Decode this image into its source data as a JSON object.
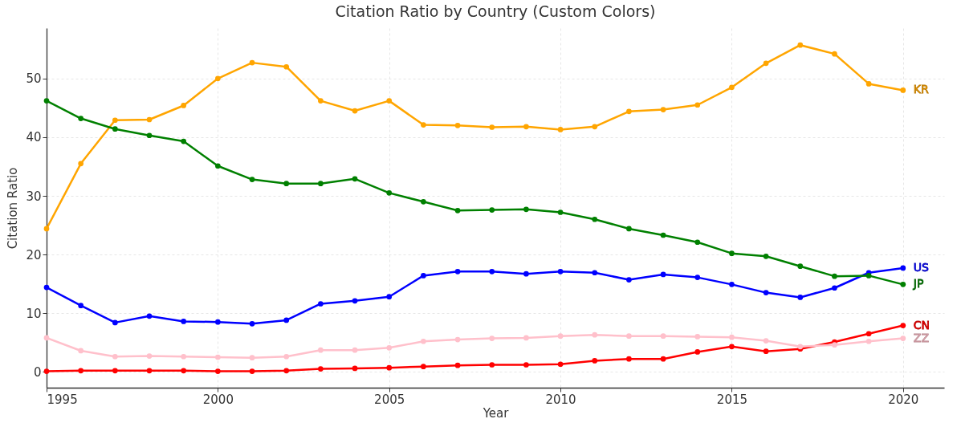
{
  "chart_data": {
    "type": "line",
    "title": "Citation Ratio by Country (Custom Colors)",
    "xlabel": "Year",
    "ylabel": "Citation Ratio",
    "x": [
      1995,
      1996,
      1997,
      1998,
      1999,
      2000,
      2001,
      2002,
      2003,
      2004,
      2005,
      2006,
      2007,
      2008,
      2009,
      2010,
      2011,
      2012,
      2013,
      2014,
      2015,
      2016,
      2017,
      2018,
      2019,
      2020
    ],
    "series": [
      {
        "name": "KR",
        "color": "#ffa500",
        "values": [
          24.4,
          35.5,
          42.9,
          43.0,
          45.4,
          50.0,
          52.7,
          52.0,
          46.2,
          44.5,
          46.2,
          42.1,
          42.0,
          41.7,
          41.8,
          41.3,
          41.8,
          44.4,
          44.7,
          45.5,
          48.5,
          52.6,
          55.7,
          54.2,
          49.1,
          48.0
        ]
      },
      {
        "name": "US",
        "color": "#0000ff",
        "values": [
          14.4,
          11.3,
          8.4,
          9.5,
          8.6,
          8.5,
          8.2,
          8.8,
          11.6,
          12.1,
          12.8,
          16.4,
          17.1,
          17.1,
          16.7,
          17.1,
          16.9,
          15.7,
          16.6,
          16.1,
          14.9,
          13.5,
          12.7,
          14.3,
          16.9,
          17.7
        ]
      },
      {
        "name": "JP",
        "color": "#008000",
        "values": [
          46.2,
          43.2,
          41.4,
          40.3,
          39.3,
          35.1,
          32.8,
          32.1,
          32.1,
          32.9,
          30.5,
          29.0,
          27.5,
          27.6,
          27.7,
          27.2,
          26.0,
          24.4,
          23.3,
          22.1,
          20.2,
          19.7,
          18.0,
          16.3,
          16.4,
          14.9
        ]
      },
      {
        "name": "CN",
        "color": "#ff0000",
        "values": [
          0.1,
          0.2,
          0.2,
          0.2,
          0.2,
          0.1,
          0.1,
          0.2,
          0.5,
          0.6,
          0.7,
          0.9,
          1.1,
          1.2,
          1.2,
          1.3,
          1.9,
          2.2,
          2.2,
          3.4,
          4.3,
          3.5,
          3.9,
          5.1,
          6.5,
          7.9
        ]
      },
      {
        "name": "ZZ",
        "color": "#ffc0cb",
        "values": [
          5.8,
          3.6,
          2.6,
          2.7,
          2.6,
          2.5,
          2.4,
          2.6,
          3.7,
          3.7,
          4.1,
          5.2,
          5.5,
          5.7,
          5.8,
          6.1,
          6.3,
          6.1,
          6.1,
          6.0,
          5.9,
          5.3,
          4.3,
          4.6,
          5.2,
          5.7
        ]
      }
    ],
    "xlim": [
      1995,
      2021.2
    ],
    "ylim": [
      -2.7,
      58.6
    ],
    "xticks": [
      1995,
      2000,
      2005,
      2010,
      2015,
      2020
    ],
    "yticks": [
      0,
      10,
      20,
      30,
      40,
      50
    ],
    "grid": true,
    "legend": false,
    "marker": "circle",
    "line_style": "solid"
  }
}
